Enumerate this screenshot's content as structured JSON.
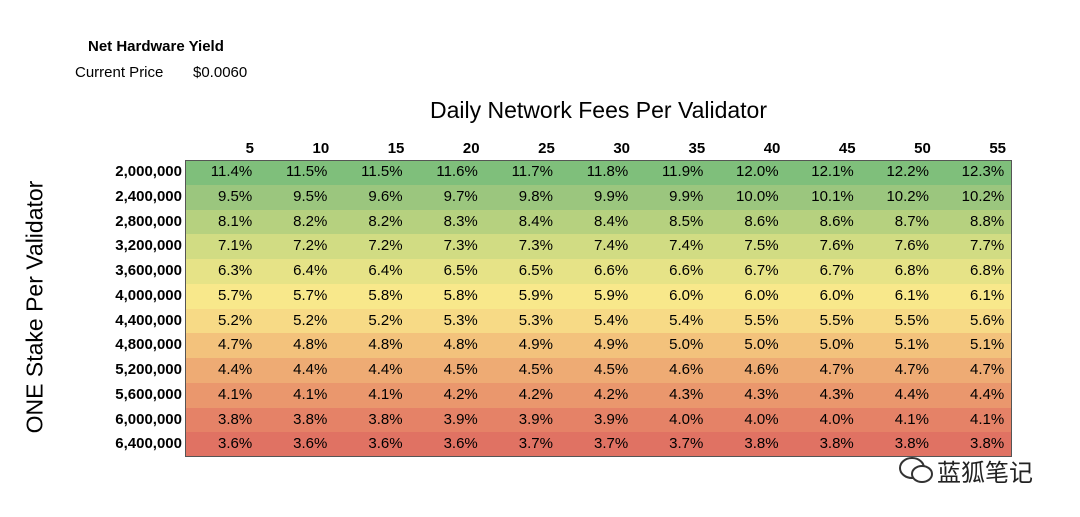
{
  "header": {
    "title": "Net Hardware Yield",
    "price_label": "Current Price",
    "price": "$0.0060"
  },
  "table": {
    "column_title": "Daily Network Fees Per Validator",
    "row_title": "ONE Stake Per Validator",
    "columns": [
      "5",
      "10",
      "15",
      "20",
      "25",
      "30",
      "35",
      "40",
      "45",
      "50",
      "55"
    ],
    "rows": [
      "2,000,000",
      "2,400,000",
      "2,800,000",
      "3,200,000",
      "3,600,000",
      "4,000,000",
      "4,400,000",
      "4,800,000",
      "5,200,000",
      "5,600,000",
      "6,000,000",
      "6,400,000"
    ],
    "row_colors": [
      "#7fbf7b",
      "#9bc67e",
      "#b6d17f",
      "#d1dc83",
      "#e6e387",
      "#f8e88b",
      "#f7da86",
      "#f3c27c",
      "#eeab74",
      "#ea976d",
      "#e58267",
      "#e07263"
    ],
    "cells": [
      [
        "11.4%",
        "11.5%",
        "11.5%",
        "11.6%",
        "11.7%",
        "11.8%",
        "11.9%",
        "12.0%",
        "12.1%",
        "12.2%",
        "12.3%"
      ],
      [
        "9.5%",
        "9.5%",
        "9.6%",
        "9.7%",
        "9.8%",
        "9.9%",
        "9.9%",
        "10.0%",
        "10.1%",
        "10.2%",
        "10.2%"
      ],
      [
        "8.1%",
        "8.2%",
        "8.2%",
        "8.3%",
        "8.4%",
        "8.4%",
        "8.5%",
        "8.6%",
        "8.6%",
        "8.7%",
        "8.8%"
      ],
      [
        "7.1%",
        "7.2%",
        "7.2%",
        "7.3%",
        "7.3%",
        "7.4%",
        "7.4%",
        "7.5%",
        "7.6%",
        "7.6%",
        "7.7%"
      ],
      [
        "6.3%",
        "6.4%",
        "6.4%",
        "6.5%",
        "6.5%",
        "6.6%",
        "6.6%",
        "6.7%",
        "6.7%",
        "6.8%",
        "6.8%"
      ],
      [
        "5.7%",
        "5.7%",
        "5.8%",
        "5.8%",
        "5.9%",
        "5.9%",
        "6.0%",
        "6.0%",
        "6.0%",
        "6.1%",
        "6.1%"
      ],
      [
        "5.2%",
        "5.2%",
        "5.2%",
        "5.3%",
        "5.3%",
        "5.4%",
        "5.4%",
        "5.5%",
        "5.5%",
        "5.5%",
        "5.6%"
      ],
      [
        "4.7%",
        "4.8%",
        "4.8%",
        "4.8%",
        "4.9%",
        "4.9%",
        "5.0%",
        "5.0%",
        "5.0%",
        "5.1%",
        "5.1%"
      ],
      [
        "4.4%",
        "4.4%",
        "4.4%",
        "4.5%",
        "4.5%",
        "4.5%",
        "4.6%",
        "4.6%",
        "4.7%",
        "4.7%",
        "4.7%"
      ],
      [
        "4.1%",
        "4.1%",
        "4.1%",
        "4.2%",
        "4.2%",
        "4.2%",
        "4.3%",
        "4.3%",
        "4.3%",
        "4.4%",
        "4.4%"
      ],
      [
        "3.8%",
        "3.8%",
        "3.8%",
        "3.9%",
        "3.9%",
        "3.9%",
        "4.0%",
        "4.0%",
        "4.0%",
        "4.1%",
        "4.1%"
      ],
      [
        "3.6%",
        "3.6%",
        "3.6%",
        "3.6%",
        "3.7%",
        "3.7%",
        "3.7%",
        "3.8%",
        "3.8%",
        "3.8%",
        "3.8%"
      ]
    ]
  },
  "watermark": {
    "text": "蓝狐笔记"
  }
}
